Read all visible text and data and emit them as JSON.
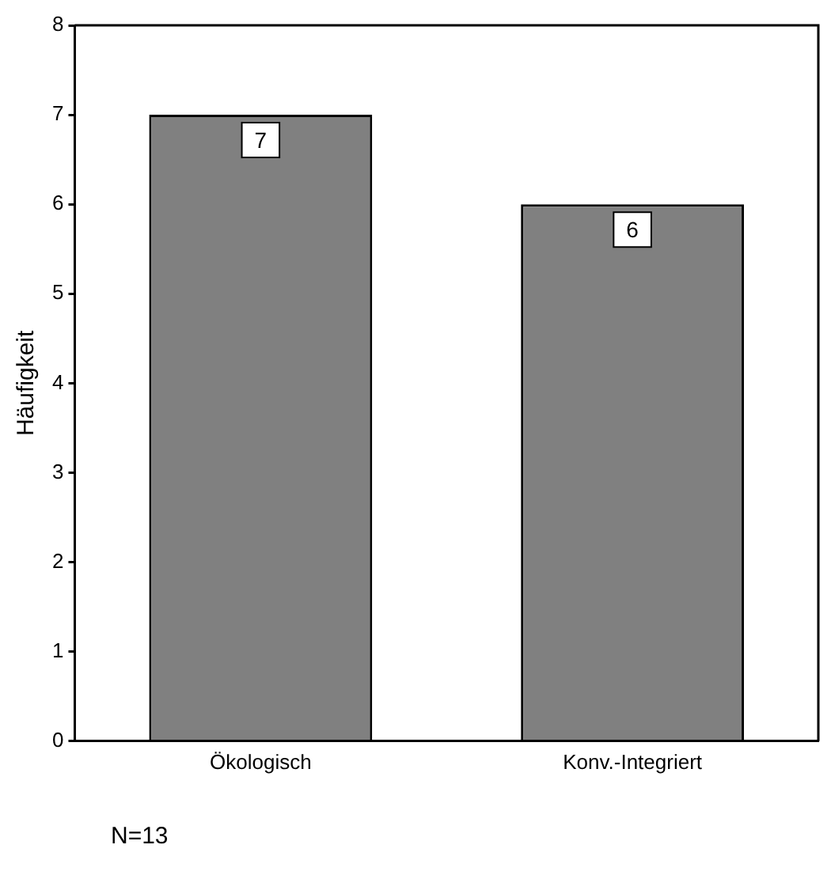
{
  "chart_data": {
    "type": "bar",
    "ylabel": "Häufigkeit",
    "categories": [
      "Ökologisch",
      "Konv.-Integriert"
    ],
    "values": [
      7,
      6
    ],
    "color": "#808080",
    "ylim": [
      0,
      8
    ],
    "yticks": [
      0,
      1,
      2,
      3,
      4,
      5,
      6,
      7,
      8
    ],
    "grid": false,
    "data_labels": true,
    "annotations": [
      "N=13"
    ]
  }
}
